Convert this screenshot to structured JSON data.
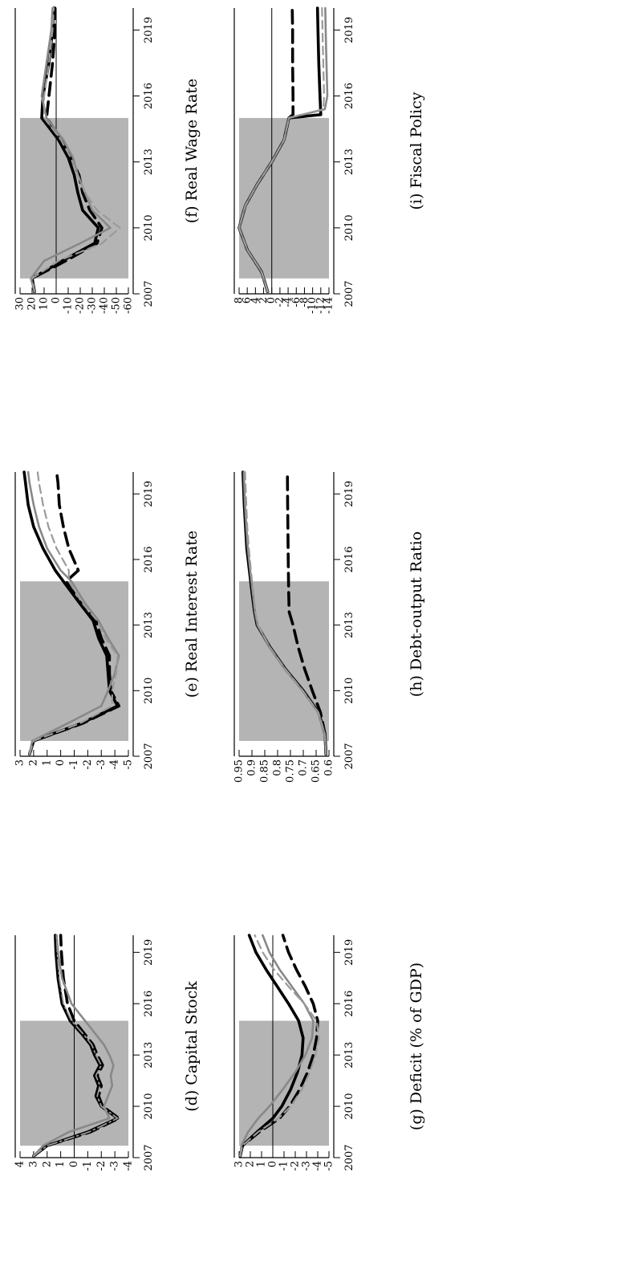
{
  "figure": {
    "x_ticks": [
      "2007",
      "2010",
      "2013",
      "2016",
      "2019"
    ],
    "shade_color": "#b4b4b4",
    "line_colors": {
      "black": "#000000",
      "gray": "#888888",
      "lightgray": "#9a9a9a"
    }
  },
  "chart_data": [
    {
      "type": "line",
      "title": "(d) Capital Stock",
      "y_ticks": [
        "4",
        "3",
        "2",
        "1",
        "0",
        "-1",
        "-2",
        "-3",
        "-4"
      ],
      "ylim": [
        -4,
        4
      ],
      "shaded_x": [
        2007.7,
        2015.0
      ],
      "zero_line": true,
      "series": [
        {
          "style": "solid-black",
          "x": [
            2007.1,
            2007.7,
            2008.5,
            2009.3,
            2010.0,
            2010.6,
            2011.2,
            2011.8,
            2012.4,
            2013.0,
            2013.6,
            2014.2,
            2015.0,
            2016.0,
            2017.5,
            2019.0,
            2020.0
          ],
          "y": [
            3.0,
            2.0,
            -1.0,
            -3.2,
            -2.0,
            -1.6,
            -1.8,
            -1.5,
            -1.9,
            -1.5,
            -1.2,
            -0.6,
            0.3,
            0.9,
            1.2,
            1.35,
            1.4
          ]
        },
        {
          "style": "dash-black",
          "x": [
            2007.1,
            2007.7,
            2008.5,
            2009.3,
            2010.0,
            2010.6,
            2011.2,
            2011.8,
            2012.4,
            2013.0,
            2013.6,
            2014.2,
            2015.0,
            2016.0,
            2017.5,
            2019.0,
            2020.0
          ],
          "y": [
            3.0,
            2.0,
            -1.2,
            -3.3,
            -2.1,
            -1.8,
            -2.0,
            -1.7,
            -2.1,
            -1.7,
            -1.4,
            -0.8,
            0.0,
            0.5,
            0.8,
            0.95,
            1.0
          ]
        },
        {
          "style": "solid-gray",
          "x": [
            2007.1,
            2007.7,
            2008.5,
            2009.3,
            2010.0,
            2010.6,
            2011.2,
            2011.8,
            2012.4,
            2013.0,
            2013.6,
            2014.2,
            2015.0,
            2016.0,
            2017.5,
            2019.0,
            2020.0
          ],
          "y": [
            3.0,
            2.3,
            0.4,
            -2.6,
            -2.2,
            -2.5,
            -2.8,
            -2.7,
            -2.9,
            -2.6,
            -2.2,
            -1.6,
            -0.8,
            0.2,
            0.9,
            1.2,
            1.3
          ]
        },
        {
          "style": "dashdot-gray",
          "x": [
            2007.1,
            2007.7,
            2008.5,
            2009.3,
            2010.0,
            2010.6,
            2011.2,
            2011.8,
            2012.4,
            2013.0,
            2013.6,
            2014.2,
            2015.0,
            2016.0,
            2017.5,
            2019.0,
            2020.0
          ],
          "y": [
            3.0,
            2.0,
            -1.1,
            -3.2,
            -2.0,
            -1.7,
            -1.9,
            -1.6,
            -2.0,
            -1.6,
            -1.3,
            -0.7,
            0.2,
            0.8,
            1.1,
            1.25,
            1.3
          ]
        }
      ]
    },
    {
      "type": "line",
      "title": "(e) Real Interest Rate",
      "y_ticks": [
        "3",
        "2",
        "1",
        "0",
        "-1",
        "-2",
        "-3",
        "-4",
        "-5"
      ],
      "ylim": [
        -5,
        3
      ],
      "shaded_x": [
        2007.7,
        2015.0
      ],
      "zero_line": false,
      "series": [
        {
          "style": "solid-black",
          "x": [
            2007.1,
            2007.7,
            2008.5,
            2009.3,
            2010.0,
            2010.8,
            2011.6,
            2012.4,
            2013.2,
            2014.0,
            2015.0,
            2015.5,
            2016.5,
            2017.5,
            2018.5,
            2019.5,
            2020.0
          ],
          "y": [
            2.3,
            2.0,
            -1.5,
            -4.2,
            -3.6,
            -3.5,
            -3.4,
            -2.8,
            -2.4,
            -1.4,
            -0.2,
            0.4,
            1.3,
            2.0,
            2.4,
            2.6,
            2.7
          ]
        },
        {
          "style": "dash-black",
          "x": [
            2007.1,
            2007.7,
            2008.5,
            2009.3,
            2010.0,
            2010.8,
            2011.6,
            2012.4,
            2013.2,
            2014.0,
            2015.0,
            2015.5,
            2016.5,
            2017.5,
            2018.5,
            2019.5,
            2020.0
          ],
          "y": [
            2.3,
            2.0,
            -1.6,
            -4.3,
            -3.7,
            -3.6,
            -3.6,
            -3.0,
            -2.6,
            -1.5,
            -0.4,
            -1.3,
            -0.6,
            -0.2,
            0.1,
            0.2,
            0.3
          ]
        },
        {
          "style": "solid-gray",
          "x": [
            2007.1,
            2007.7,
            2008.5,
            2009.3,
            2010.0,
            2010.8,
            2011.6,
            2012.4,
            2013.2,
            2014.0,
            2015.0,
            2015.5,
            2016.5,
            2017.5,
            2018.5,
            2019.5,
            2020.0
          ],
          "y": [
            2.3,
            2.1,
            -0.5,
            -3.0,
            -3.5,
            -4.0,
            -4.3,
            -3.5,
            -2.8,
            -1.8,
            -0.8,
            0.0,
            1.0,
            1.6,
            2.0,
            2.3,
            2.4
          ]
        },
        {
          "style": "dashed-gray",
          "x": [
            2007.1,
            2007.7,
            2008.5,
            2009.3,
            2010.0,
            2010.8,
            2011.6,
            2012.4,
            2013.2,
            2014.0,
            2015.0,
            2015.5,
            2016.5,
            2017.5,
            2018.5,
            2019.5,
            2020.0
          ],
          "y": [
            2.3,
            2.0,
            -1.4,
            -3.8,
            -3.8,
            -4.1,
            -4.2,
            -3.3,
            -2.7,
            -1.6,
            -0.6,
            -0.6,
            0.3,
            0.9,
            1.3,
            1.6,
            1.7
          ]
        }
      ]
    },
    {
      "type": "line",
      "title": "(f) Real Wage Rate",
      "y_ticks": [
        "30",
        "20",
        "10",
        "0",
        "-10",
        "-20",
        "-30",
        "-40",
        "-50",
        "-60"
      ],
      "ylim": [
        -60,
        30
      ],
      "shaded_x": [
        2007.7,
        2015.0
      ],
      "zero_line": true,
      "series": [
        {
          "style": "solid-black",
          "x": [
            2007.1,
            2007.7,
            2008.5,
            2009.3,
            2010.0,
            2010.8,
            2011.6,
            2012.4,
            2013.2,
            2014.0,
            2015.0,
            2016.0,
            2017.5,
            2019.0,
            2020.0
          ],
          "y": [
            18,
            20,
            -5,
            -32,
            -35,
            -22,
            -18,
            -15,
            -10,
            -2,
            12,
            11,
            6,
            3,
            2
          ]
        },
        {
          "style": "dash-black",
          "x": [
            2007.1,
            2007.7,
            2008.5,
            2009.3,
            2010.0,
            2010.8,
            2011.6,
            2012.4,
            2013.2,
            2014.0,
            2015.0,
            2016.0,
            2017.5,
            2019.0,
            2020.0
          ],
          "y": [
            18,
            20,
            -8,
            -34,
            -38,
            -28,
            -22,
            -19,
            -12,
            -5,
            8,
            6,
            3,
            1,
            1
          ]
        },
        {
          "style": "solid-gray",
          "x": [
            2007.1,
            2007.7,
            2008.5,
            2009.3,
            2010.0,
            2010.8,
            2011.6,
            2012.4,
            2013.2,
            2014.0,
            2015.0,
            2016.0,
            2017.5,
            2019.0,
            2020.0
          ],
          "y": [
            18,
            21,
            10,
            -20,
            -45,
            -30,
            -24,
            -18,
            -14,
            -6,
            8,
            12,
            8,
            4,
            3
          ]
        },
        {
          "style": "dashed-gray",
          "x": [
            2007.1,
            2007.7,
            2008.5,
            2009.3,
            2010.0,
            2010.8,
            2011.6,
            2012.4,
            2013.2,
            2014.0,
            2015.0,
            2016.0,
            2017.5,
            2019.0,
            2020.0
          ],
          "y": [
            18,
            20,
            -2,
            -38,
            -53,
            -34,
            -24,
            -18,
            -12,
            -4,
            10,
            10,
            6,
            3,
            2
          ]
        }
      ]
    },
    {
      "type": "line",
      "title": "(g) Deficit (% of GDP)",
      "y_ticks": [
        "3",
        "2",
        "1",
        "0",
        "-1",
        "-2",
        "-3",
        "-4",
        "-5"
      ],
      "ylim": [
        -5,
        3
      ],
      "shaded_x": [
        2007.7,
        2015.0
      ],
      "zero_line": true,
      "series": [
        {
          "style": "solid-black",
          "x": [
            2007.1,
            2007.7,
            2008.5,
            2009.3,
            2010.0,
            2011.0,
            2012.0,
            2013.0,
            2014.0,
            2015.0,
            2016.0,
            2017.0,
            2018.0,
            2019.0,
            2020.0
          ],
          "y": [
            2.9,
            2.7,
            1.4,
            0.0,
            -0.8,
            -1.6,
            -2.2,
            -2.6,
            -2.7,
            -2.3,
            -1.4,
            -0.4,
            0.6,
            1.5,
            2.1
          ]
        },
        {
          "style": "dash-black",
          "x": [
            2007.1,
            2007.7,
            2008.5,
            2009.3,
            2010.0,
            2011.0,
            2012.0,
            2013.0,
            2014.0,
            2015.0,
            2016.0,
            2017.0,
            2018.0,
            2019.0,
            2020.0
          ],
          "y": [
            2.9,
            2.7,
            1.2,
            -0.6,
            -1.5,
            -2.4,
            -3.1,
            -3.6,
            -3.9,
            -4.0,
            -3.6,
            -2.9,
            -2.1,
            -1.4,
            -0.9
          ]
        },
        {
          "style": "solid-gray",
          "x": [
            2007.1,
            2007.7,
            2008.5,
            2009.3,
            2010.0,
            2011.0,
            2012.0,
            2013.0,
            2014.0,
            2015.0,
            2016.0,
            2017.0,
            2018.0,
            2019.0,
            2020.0
          ],
          "y": [
            2.9,
            2.8,
            2.2,
            1.3,
            0.3,
            -0.9,
            -2.0,
            -2.9,
            -3.5,
            -3.6,
            -2.8,
            -1.7,
            -0.6,
            0.3,
            0.9
          ]
        },
        {
          "style": "dashed-gray",
          "x": [
            2007.1,
            2007.7,
            2008.5,
            2009.3,
            2010.0,
            2011.0,
            2012.0,
            2013.0,
            2014.0,
            2015.0,
            2016.0,
            2017.0,
            2018.0,
            2019.0,
            2020.0
          ],
          "y": [
            2.9,
            2.7,
            1.3,
            -0.5,
            -1.6,
            -2.6,
            -3.3,
            -3.8,
            -4.1,
            -3.9,
            -2.8,
            -1.4,
            -0.1,
            0.9,
            1.6
          ]
        }
      ]
    },
    {
      "type": "line",
      "title": "(h) Debt-output Ratio",
      "y_ticks": [
        "0.95",
        "0.9",
        "0.85",
        "0.8",
        "0.75",
        "0.7",
        "0.65",
        "0.6"
      ],
      "ylim": [
        0.6,
        0.95
      ],
      "shaded_x": [
        2007.7,
        2015.0
      ],
      "zero_line": false,
      "series": [
        {
          "style": "solid-black",
          "x": [
            2007.1,
            2008.0,
            2009.0,
            2010.0,
            2011.0,
            2012.0,
            2013.0,
            2013.6,
            2014.5,
            2015.5,
            2016.5,
            2017.5,
            2018.5,
            2020.0
          ],
          "y": [
            0.612,
            0.615,
            0.64,
            0.7,
            0.77,
            0.83,
            0.88,
            0.89,
            0.9,
            0.91,
            0.92,
            0.925,
            0.93,
            0.935
          ]
        },
        {
          "style": "dash-black",
          "x": [
            2007.1,
            2008.0,
            2009.0,
            2010.0,
            2011.0,
            2012.0,
            2013.0,
            2013.6,
            2014.5,
            2015.5,
            2016.5,
            2017.5,
            2018.5,
            2020.0
          ],
          "y": [
            0.612,
            0.615,
            0.633,
            0.665,
            0.695,
            0.72,
            0.74,
            0.755,
            0.757,
            0.758,
            0.759,
            0.76,
            0.761,
            0.762
          ]
        },
        {
          "style": "solid-gray",
          "x": [
            2007.1,
            2008.0,
            2009.0,
            2010.0,
            2011.0,
            2012.0,
            2013.0,
            2013.6,
            2014.5,
            2015.5,
            2016.5,
            2017.5,
            2018.5,
            2020.0
          ],
          "y": [
            0.612,
            0.616,
            0.642,
            0.703,
            0.772,
            0.832,
            0.878,
            0.888,
            0.897,
            0.907,
            0.916,
            0.922,
            0.927,
            0.932
          ]
        },
        {
          "style": "dashed-gray",
          "x": [
            2007.1,
            2008.0,
            2009.0,
            2010.0,
            2011.0,
            2012.0,
            2013.0,
            2013.6,
            2014.5,
            2015.5,
            2016.5,
            2017.5,
            2018.5,
            2020.0
          ],
          "y": [
            0.612,
            0.616,
            0.641,
            0.702,
            0.771,
            0.831,
            0.877,
            0.887,
            0.895,
            0.904,
            0.912,
            0.918,
            0.922,
            0.927
          ]
        }
      ]
    },
    {
      "type": "line",
      "title": "(i) Fiscal Policy",
      "y_ticks": [
        "8",
        "6",
        "4",
        "2",
        "0",
        "-2",
        "-4",
        "-6",
        "-8",
        "-10",
        "-12",
        "-14"
      ],
      "ylim": [
        -14,
        8
      ],
      "shaded_x": [
        2007.7,
        2015.0
      ],
      "zero_line": true,
      "series": [
        {
          "style": "solid-black",
          "x": [
            2007.1,
            2008.0,
            2009.0,
            2010.0,
            2011.0,
            2012.0,
            2013.0,
            2014.0,
            2015.0,
            2015.15,
            2016.0,
            2017.5,
            2019.0,
            2020.0
          ],
          "y": [
            1.0,
            2.5,
            6.0,
            8.0,
            6.5,
            3.5,
            0.0,
            -3.0,
            -4.2,
            -12.0,
            -11.8,
            -11.5,
            -11.3,
            -11.2
          ]
        },
        {
          "style": "dash-black",
          "x": [
            2007.1,
            2008.0,
            2009.0,
            2010.0,
            2011.0,
            2012.0,
            2013.0,
            2014.0,
            2015.0,
            2015.15,
            2016.0,
            2017.5,
            2019.0,
            2020.0
          ],
          "y": [
            1.0,
            2.5,
            6.0,
            8.0,
            6.5,
            3.5,
            0.0,
            -3.0,
            -4.2,
            -5.2,
            -5.2,
            -5.1,
            -5.1,
            -5.0
          ]
        },
        {
          "style": "solid-gray",
          "x": [
            2007.1,
            2008.0,
            2009.0,
            2010.0,
            2011.0,
            2012.0,
            2013.0,
            2014.0,
            2015.0,
            2015.4,
            2016.0,
            2017.5,
            2019.0,
            2020.0
          ],
          "y": [
            1.0,
            2.5,
            6.0,
            8.0,
            6.5,
            3.5,
            0.0,
            -3.0,
            -4.2,
            -13.0,
            -13.6,
            -13.4,
            -13.2,
            -13.1
          ]
        },
        {
          "style": "dashed-gray",
          "x": [
            2007.1,
            2008.0,
            2009.0,
            2010.0,
            2011.0,
            2012.0,
            2013.0,
            2014.0,
            2015.0,
            2015.4,
            2016.0,
            2017.5,
            2019.0,
            2020.0
          ],
          "y": [
            1.0,
            2.5,
            6.0,
            8.0,
            6.5,
            3.5,
            0.0,
            -3.0,
            -4.2,
            -12.6,
            -12.8,
            -12.6,
            -12.4,
            -12.3
          ]
        }
      ]
    }
  ]
}
